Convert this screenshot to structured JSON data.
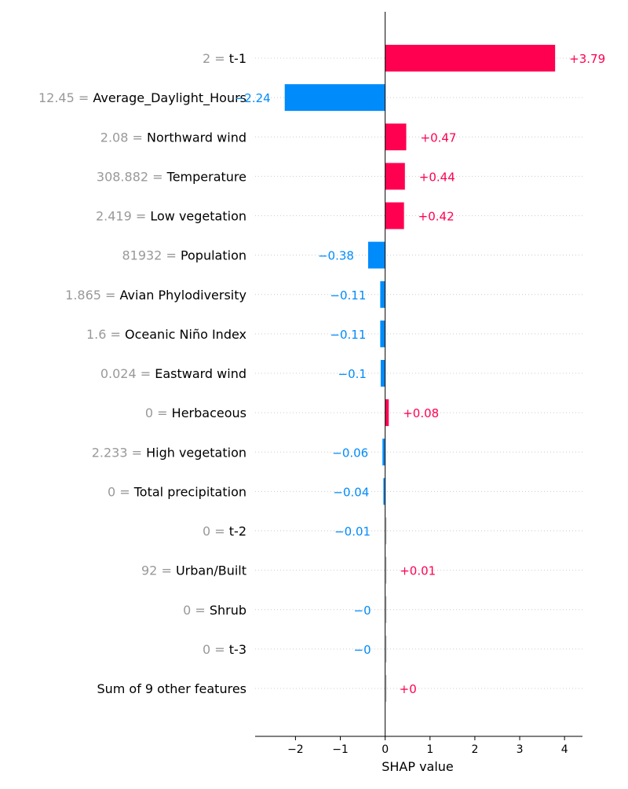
{
  "chart_data": {
    "type": "bar",
    "orientation": "horizontal",
    "xlabel": "SHAP value",
    "xlim": [
      -2.9,
      4.4
    ],
    "xticks": [
      {
        "value": -2,
        "label": "−2"
      },
      {
        "value": -1,
        "label": "−1"
      },
      {
        "value": 0,
        "label": "0"
      },
      {
        "value": 1,
        "label": "1"
      },
      {
        "value": 2,
        "label": "2"
      },
      {
        "value": 3,
        "label": "3"
      },
      {
        "value": 4,
        "label": "4"
      }
    ],
    "grid": "horizontal-dotted",
    "colors": {
      "positive": "#ff0051",
      "negative": "#008bfb",
      "feature_value": "#999999",
      "feature_name": "#000000"
    },
    "bars": [
      {
        "feature_value": "2 =",
        "feature_name": "t-1",
        "value": 3.79,
        "value_label": "+3.79",
        "color": "#ff0051"
      },
      {
        "feature_value": "12.45 =",
        "feature_name": "Average_Daylight_Hours",
        "value": -2.24,
        "value_label": "−2.24",
        "color": "#008bfb"
      },
      {
        "feature_value": "2.08 =",
        "feature_name": "Northward wind",
        "value": 0.47,
        "value_label": "+0.47",
        "color": "#ff0051"
      },
      {
        "feature_value": "308.882 =",
        "feature_name": "Temperature",
        "value": 0.44,
        "value_label": "+0.44",
        "color": "#ff0051"
      },
      {
        "feature_value": "2.419 =",
        "feature_name": "Low vegetation",
        "value": 0.42,
        "value_label": "+0.42",
        "color": "#ff0051"
      },
      {
        "feature_value": "81932 =",
        "feature_name": "Population",
        "value": -0.38,
        "value_label": "−0.38",
        "color": "#008bfb"
      },
      {
        "feature_value": "1.865 =",
        "feature_name": "Avian Phylodiversity",
        "value": -0.11,
        "value_label": "−0.11",
        "color": "#008bfb"
      },
      {
        "feature_value": "1.6 =",
        "feature_name": "Oceanic Niño Index",
        "value": -0.11,
        "value_label": "−0.11",
        "color": "#008bfb"
      },
      {
        "feature_value": "0.024 =",
        "feature_name": "Eastward wind",
        "value": -0.1,
        "value_label": "−0.1",
        "color": "#008bfb"
      },
      {
        "feature_value": "0 =",
        "feature_name": "Herbaceous",
        "value": 0.08,
        "value_label": "+0.08",
        "color": "#ff0051"
      },
      {
        "feature_value": "2.233 =",
        "feature_name": "High vegetation",
        "value": -0.06,
        "value_label": "−0.06",
        "color": "#008bfb"
      },
      {
        "feature_value": "0 =",
        "feature_name": "Total precipitation",
        "value": -0.04,
        "value_label": "−0.04",
        "color": "#008bfb"
      },
      {
        "feature_value": "0 =",
        "feature_name": "t-2",
        "value": -0.01,
        "value_label": "−0.01",
        "color": "#008bfb"
      },
      {
        "feature_value": "92 =",
        "feature_name": "Urban/Built",
        "value": 0.01,
        "value_label": "+0.01",
        "color": "#ff0051"
      },
      {
        "feature_value": "0 =",
        "feature_name": "Shrub",
        "value": 0,
        "value_label": "−0",
        "color": "#008bfb"
      },
      {
        "feature_value": "0 =",
        "feature_name": "t-3",
        "value": 0,
        "value_label": "−0",
        "color": "#008bfb"
      },
      {
        "feature_value": "",
        "feature_name": "Sum of 9 other features",
        "value": 0,
        "value_label": "+0",
        "color": "#ff0051"
      }
    ]
  }
}
